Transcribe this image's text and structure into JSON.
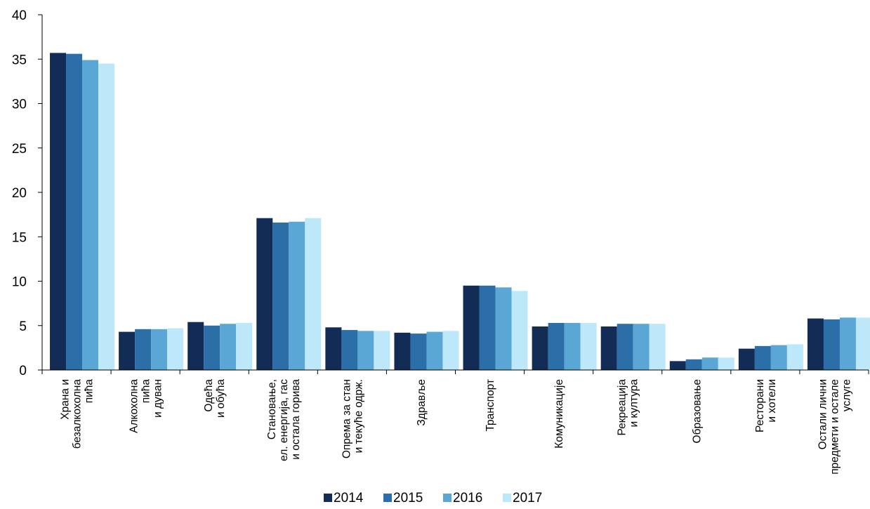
{
  "chart_data": {
    "type": "bar",
    "title": "",
    "xlabel": "",
    "ylabel": "",
    "ylim": [
      0,
      40
    ],
    "yticks": [
      "0",
      "5",
      "10",
      "15",
      "20",
      "25",
      "30",
      "35",
      "40"
    ],
    "grid": false,
    "legend_position": "bottom",
    "categories": [
      [
        "Храна и",
        "безалкохолна",
        "пића"
      ],
      [
        "Алкохолна",
        "пића",
        "и дуван"
      ],
      [
        "Одећа",
        "и обућа"
      ],
      [
        "Становање,",
        "ел. енергија, гас",
        "и остала горива"
      ],
      [
        "Опрема за стан",
        "и текуће одрж."
      ],
      [
        "Здравље"
      ],
      [
        "Транспорт"
      ],
      [
        "Комуникације"
      ],
      [
        "Рекреација",
        "и култура"
      ],
      [
        "Образовање"
      ],
      [
        "Ресторани",
        "и хотели"
      ],
      [
        "Остали лични",
        "предмети и остале",
        "услуге"
      ]
    ],
    "series": [
      {
        "name": "2014",
        "color": "#132c55",
        "values": [
          35.7,
          4.3,
          5.4,
          17.1,
          4.8,
          4.2,
          9.5,
          4.9,
          4.9,
          1.0,
          2.4,
          5.8
        ]
      },
      {
        "name": "2015",
        "color": "#2c6ea8",
        "values": [
          35.6,
          4.6,
          5.0,
          16.6,
          4.5,
          4.1,
          9.5,
          5.3,
          5.2,
          1.2,
          2.7,
          5.7
        ]
      },
      {
        "name": "2016",
        "color": "#5aa7d6",
        "values": [
          34.9,
          4.6,
          5.2,
          16.7,
          4.4,
          4.3,
          9.3,
          5.3,
          5.2,
          1.4,
          2.8,
          5.9
        ]
      },
      {
        "name": "2017",
        "color": "#bde8fa",
        "values": [
          34.5,
          4.7,
          5.3,
          17.1,
          4.4,
          4.4,
          8.9,
          5.3,
          5.2,
          1.4,
          2.9,
          5.9
        ]
      }
    ]
  }
}
